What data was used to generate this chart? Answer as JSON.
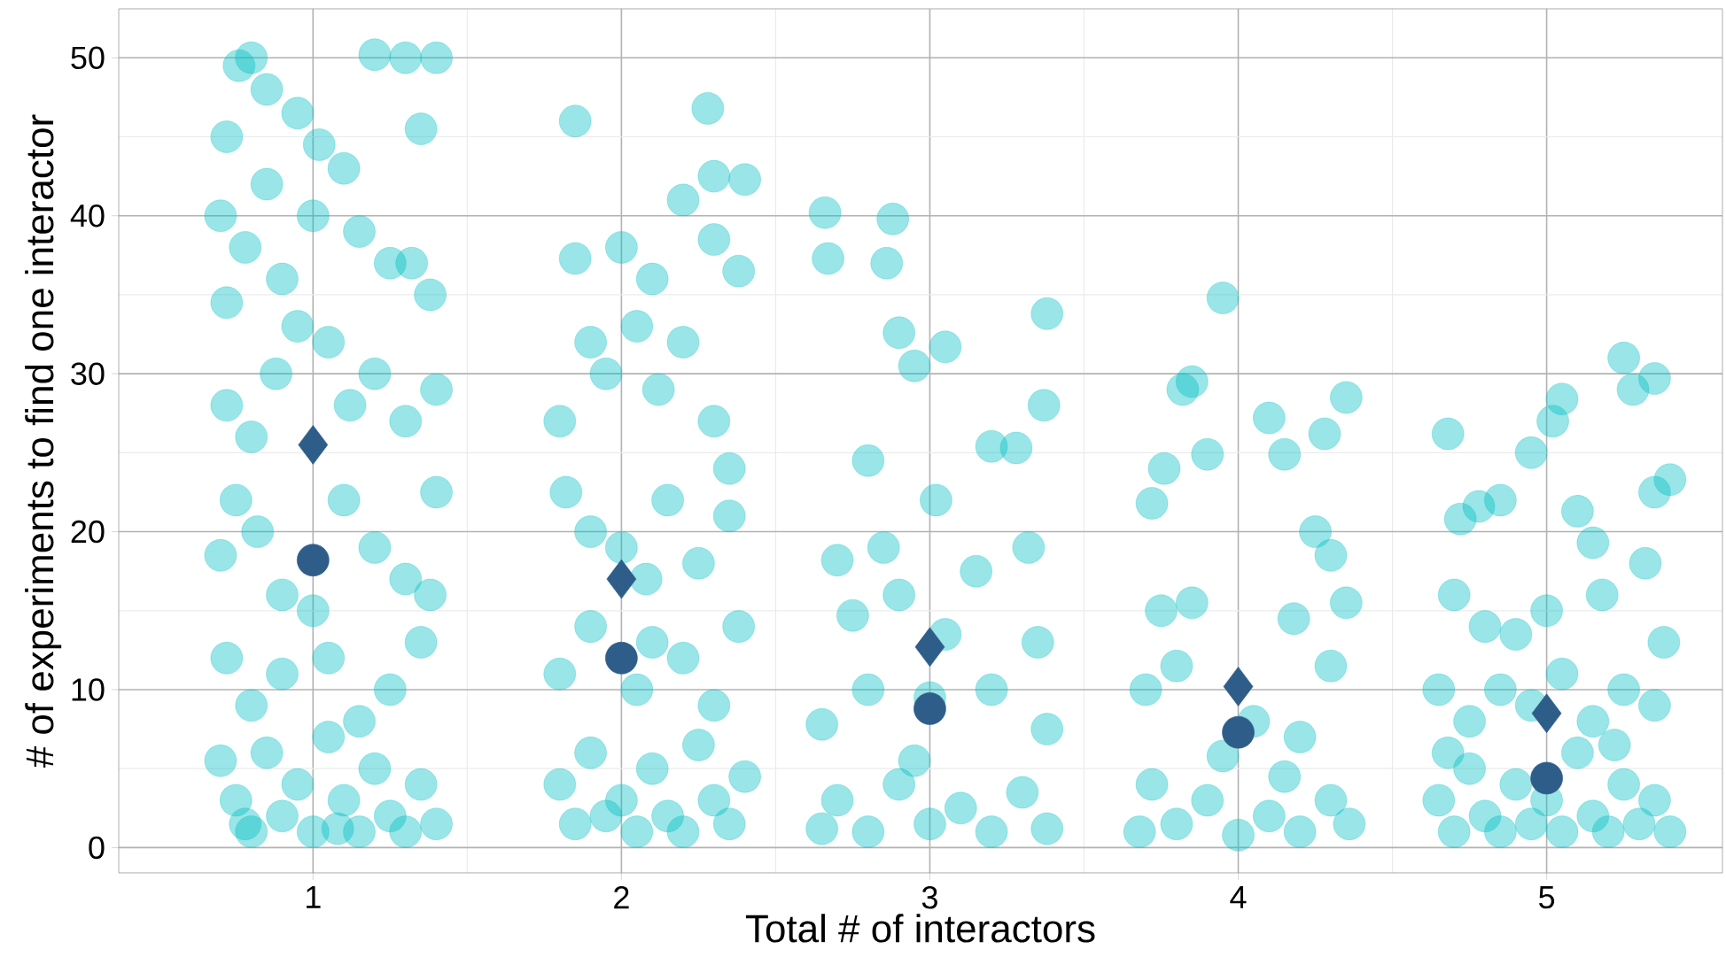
{
  "chart_data": {
    "type": "scatter",
    "xlabel": "Total # of interactors",
    "ylabel": "# of experiments to find one interactor",
    "xlim": [
      0.37,
      5.57
    ],
    "ylim": [
      -1.6,
      53.1
    ],
    "xticks": [
      1,
      2,
      3,
      4,
      5
    ],
    "yticks": [
      0,
      10,
      20,
      30,
      40,
      50
    ],
    "grid": true,
    "series": [
      {
        "color": "#00bfc4",
        "marker": "circle",
        "x": [
          0.72,
          0.76,
          0.8,
          0.85,
          0.95,
          1.02,
          1.2,
          1.3,
          1.4,
          1.35,
          0.7,
          0.72,
          0.78,
          0.85,
          0.9,
          1.0,
          1.1,
          1.15,
          1.25,
          1.32,
          1.38,
          0.72,
          0.8,
          0.88,
          0.95,
          1.05,
          1.12,
          1.2,
          1.3,
          1.4,
          0.7,
          0.75,
          0.82,
          0.9,
          1.0,
          1.1,
          1.2,
          1.3,
          1.4,
          1.38,
          0.72,
          0.8,
          0.9,
          1.05,
          1.15,
          1.25,
          1.35,
          0.7,
          0.75,
          0.8,
          0.85,
          0.9,
          0.95,
          1.0,
          1.05,
          1.1,
          1.15,
          1.2,
          1.25,
          1.3,
          1.35,
          1.4,
          0.78,
          1.08,
          1.85,
          2.28,
          2.3,
          2.4,
          2.2,
          1.85,
          2.0,
          2.1,
          2.3,
          2.38,
          1.8,
          1.9,
          1.95,
          2.05,
          2.12,
          2.2,
          2.3,
          2.35,
          1.82,
          1.9,
          2.0,
          2.08,
          2.15,
          2.25,
          2.35,
          1.8,
          1.9,
          2.05,
          2.1,
          2.2,
          2.3,
          2.38,
          1.8,
          1.85,
          1.9,
          1.95,
          2.0,
          2.05,
          2.1,
          2.15,
          2.2,
          2.25,
          2.3,
          2.35,
          2.4,
          2.66,
          2.67,
          2.88,
          2.86,
          2.9,
          3.05,
          3.38,
          3.37,
          2.95,
          2.8,
          3.2,
          3.28,
          3.02,
          2.7,
          2.85,
          3.15,
          3.32,
          2.75,
          2.9,
          3.05,
          3.35,
          2.65,
          2.8,
          3.0,
          3.2,
          3.38,
          2.7,
          2.8,
          2.9,
          3.0,
          3.1,
          3.2,
          3.3,
          3.38,
          2.65,
          2.95,
          3.95,
          3.85,
          3.82,
          3.72,
          3.76,
          3.9,
          4.1,
          4.15,
          4.28,
          4.35,
          4.25,
          4.3,
          3.75,
          3.85,
          4.18,
          4.35,
          3.7,
          3.8,
          4.05,
          4.3,
          4.2,
          3.68,
          3.72,
          3.8,
          3.9,
          4.0,
          4.1,
          4.15,
          4.2,
          4.3,
          4.36,
          3.95,
          4.68,
          4.72,
          4.78,
          4.85,
          4.95,
          5.05,
          5.02,
          5.1,
          5.15,
          5.25,
          5.28,
          5.35,
          5.35,
          5.4,
          4.7,
          4.8,
          4.9,
          5.0,
          5.18,
          5.32,
          5.38,
          4.65,
          4.75,
          4.85,
          4.95,
          5.05,
          5.15,
          5.25,
          5.35,
          4.65,
          4.7,
          4.75,
          4.8,
          4.85,
          4.9,
          4.95,
          5.0,
          5.05,
          5.1,
          5.15,
          5.2,
          5.25,
          5.3,
          5.35,
          5.4,
          4.68,
          5.22
        ],
        "values": [
          45,
          49.5,
          50,
          48,
          46.5,
          44.5,
          50.2,
          50,
          50,
          45.5,
          40,
          34.5,
          38,
          42,
          36,
          40,
          43,
          39,
          37,
          37,
          35,
          28,
          26,
          30,
          33,
          32,
          28,
          30,
          27,
          29,
          18.5,
          22,
          20,
          16,
          15,
          22,
          19,
          17,
          22.5,
          16,
          12,
          9,
          11,
          12,
          8,
          10,
          13,
          5.5,
          3,
          1,
          6,
          2,
          4,
          1,
          7,
          3,
          1,
          5,
          2,
          1,
          4,
          1.5,
          1.5,
          1.2,
          46,
          46.8,
          42.5,
          42.3,
          41,
          37.3,
          38,
          36,
          38.5,
          36.5,
          27,
          32,
          30,
          33,
          29,
          32,
          27,
          24,
          22.5,
          20,
          19,
          17,
          22,
          18,
          21,
          11,
          14,
          10,
          13,
          12,
          9,
          14,
          4,
          1.5,
          6,
          2,
          3,
          1,
          5,
          2,
          1,
          6.5,
          3,
          1.5,
          4.5,
          40.2,
          37.3,
          39.8,
          37,
          32.6,
          31.7,
          33.8,
          28,
          30.5,
          24.5,
          25.4,
          25.3,
          22,
          18.2,
          19,
          17.5,
          19,
          14.7,
          16,
          13.5,
          13,
          7.8,
          10,
          9.5,
          10,
          7.5,
          3,
          1,
          4,
          1.5,
          2.5,
          1,
          3.5,
          1.2,
          1.2,
          5.5,
          34.8,
          29.5,
          29,
          21.8,
          24,
          24.9,
          27.2,
          24.9,
          26.2,
          28.5,
          20,
          18.5,
          15,
          15.5,
          14.5,
          15.5,
          10,
          11.5,
          8,
          11.5,
          7,
          1,
          4,
          1.5,
          3,
          0.8,
          2,
          4.5,
          1,
          3,
          1.5,
          5.8,
          26.2,
          20.8,
          21.6,
          22,
          25,
          28.4,
          27,
          21.3,
          19.3,
          31,
          29,
          29.7,
          22.5,
          23.3,
          16,
          14,
          13.5,
          15,
          16,
          18,
          13,
          10,
          8,
          10,
          9,
          11,
          8,
          10,
          9,
          3,
          1,
          5,
          2,
          1,
          4,
          1.5,
          3,
          1,
          6,
          2,
          1,
          4,
          1.5,
          3,
          1,
          6,
          6.5
        ]
      },
      {
        "color": "#2f5d8a",
        "marker": "diamond",
        "x": [
          1,
          2,
          3,
          4,
          5
        ],
        "values": [
          25.5,
          17,
          12.7,
          10.2,
          8.5
        ]
      },
      {
        "color": "#2f5d8a",
        "marker": "circle",
        "x": [
          1,
          2,
          3,
          4,
          5
        ],
        "values": [
          18.2,
          12,
          8.8,
          7.3,
          4.4
        ]
      }
    ]
  }
}
